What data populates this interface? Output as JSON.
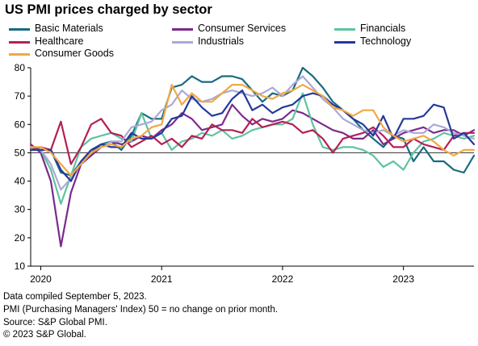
{
  "title": "US PMI prices charged by sector",
  "footnotes": [
    "Data compiled September 5, 2023.",
    "PMI (Purchasing Managers' Index) 50 =  no change on prior month.",
    "Source: S&P Global PMI.",
    "© 2023 S&P Global."
  ],
  "chart_data": {
    "type": "line",
    "title": "US PMI prices charged by sector",
    "xlabel": "",
    "ylabel": "",
    "ylim": [
      10,
      80
    ],
    "yticks": [
      10,
      20,
      30,
      40,
      50,
      60,
      70,
      80
    ],
    "xlim": [
      "2019-12",
      "2023-08"
    ],
    "xticks": [
      "2020",
      "2021",
      "2022",
      "2023"
    ],
    "reference_line": 50,
    "grid": false,
    "legend_position": "top",
    "x": [
      "2019-12",
      "2020-01",
      "2020-02",
      "2020-03",
      "2020-04",
      "2020-05",
      "2020-06",
      "2020-07",
      "2020-08",
      "2020-09",
      "2020-10",
      "2020-11",
      "2020-12",
      "2021-01",
      "2021-02",
      "2021-03",
      "2021-04",
      "2021-05",
      "2021-06",
      "2021-07",
      "2021-08",
      "2021-09",
      "2021-10",
      "2021-11",
      "2021-12",
      "2022-01",
      "2022-02",
      "2022-03",
      "2022-04",
      "2022-05",
      "2022-06",
      "2022-07",
      "2022-08",
      "2022-09",
      "2022-10",
      "2022-11",
      "2022-12",
      "2023-01",
      "2023-02",
      "2023-03",
      "2023-04",
      "2023-05",
      "2023-06",
      "2023-07",
      "2023-08"
    ],
    "series": [
      {
        "name": "Basic Materials",
        "color": "#1a6a80",
        "values": [
          52,
          51,
          51,
          43,
          42,
          47,
          50,
          53,
          54,
          51,
          56,
          64,
          62,
          62,
          73,
          74,
          77,
          75,
          75,
          77,
          77,
          76,
          72,
          68,
          71,
          70,
          72,
          80,
          77,
          73,
          68,
          65,
          62,
          58,
          55,
          52,
          56,
          55,
          47,
          52,
          47,
          47,
          44,
          43,
          49
        ]
      },
      {
        "name": "Consumer Services",
        "color": "#7b2a8a",
        "values": [
          53,
          50,
          40,
          17,
          36,
          46,
          49,
          52,
          54,
          53,
          54,
          56,
          55,
          58,
          60,
          64,
          62,
          58,
          59,
          60,
          67,
          63,
          60,
          62,
          61,
          62,
          65,
          64,
          62,
          60,
          58,
          57,
          55,
          55,
          58,
          53,
          55,
          57,
          58,
          59,
          57,
          58,
          58,
          56,
          58
        ]
      },
      {
        "name": "Financials",
        "color": "#5ec4a0",
        "values": [
          52,
          51,
          44,
          32,
          42,
          52,
          55,
          56,
          57,
          55,
          54,
          64,
          55,
          57,
          51,
          54,
          55,
          57,
          56,
          58,
          55,
          56,
          58,
          59,
          60,
          60,
          62,
          71,
          60,
          52,
          51,
          52,
          52,
          51,
          49,
          45,
          47,
          44,
          50,
          54,
          55,
          57,
          56,
          55,
          56
        ]
      },
      {
        "name": "Healthcare",
        "color": "#b51f56",
        "values": [
          51,
          52,
          51,
          61,
          46,
          52,
          60,
          62,
          57,
          56,
          52,
          54,
          56,
          53,
          55,
          52,
          56,
          55,
          60,
          58,
          58,
          57,
          62,
          59,
          60,
          61,
          60,
          57,
          58,
          55,
          50,
          55,
          56,
          57,
          59,
          56,
          52,
          52,
          55,
          53,
          52,
          51,
          56,
          57,
          57
        ]
      },
      {
        "name": "Industrials",
        "color": "#a9a9d8",
        "values": [
          51,
          51,
          46,
          37,
          41,
          47,
          50,
          52,
          54,
          54,
          59,
          60,
          61,
          65,
          67,
          72,
          69,
          68,
          69,
          71,
          72,
          71,
          70,
          71,
          73,
          70,
          74,
          77,
          73,
          69,
          66,
          62,
          60,
          58,
          57,
          58,
          56,
          58,
          57,
          57,
          60,
          59,
          57,
          56,
          55
        ]
      },
      {
        "name": "Technology",
        "color": "#233999",
        "values": [
          51,
          51,
          51,
          44,
          40,
          47,
          51,
          53,
          52,
          52,
          57,
          55,
          55,
          57,
          62,
          63,
          70,
          66,
          63,
          64,
          69,
          72,
          65,
          67,
          64,
          66,
          67,
          70,
          71,
          70,
          67,
          65,
          62,
          60,
          56,
          63,
          55,
          62,
          62,
          63,
          67,
          66,
          55,
          57,
          53
        ]
      },
      {
        "name": "Consumer Goods",
        "color": "#f0a845",
        "values": [
          52,
          52,
          50,
          46,
          42,
          46,
          50,
          52,
          53,
          52,
          55,
          56,
          59,
          60,
          74,
          67,
          71,
          68,
          68,
          71,
          74,
          74,
          72,
          70,
          69,
          71,
          72,
          74,
          72,
          70,
          66,
          65,
          63,
          65,
          65,
          59,
          56,
          54,
          55,
          56,
          54,
          51,
          49,
          51,
          51
        ]
      }
    ]
  }
}
